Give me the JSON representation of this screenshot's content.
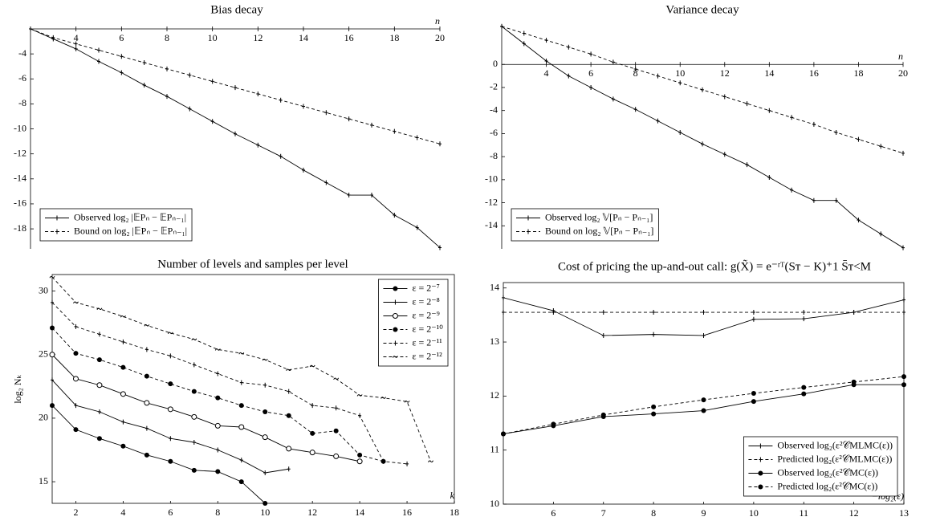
{
  "chart_data": [
    {
      "type": "line",
      "title": "Bias decay",
      "xlabel": "n",
      "x": [
        2,
        3,
        4,
        5,
        6,
        7,
        8,
        9,
        10,
        11,
        12,
        13,
        14,
        15,
        16,
        17,
        18,
        19,
        20
      ],
      "xlim": [
        2,
        20
      ],
      "xticks": [
        4,
        6,
        8,
        10,
        12,
        14,
        16,
        18,
        20
      ],
      "ylim": [
        -19.6,
        -2
      ],
      "yticks": [
        -4,
        -6,
        -8,
        -10,
        -12,
        -14,
        -16,
        -18
      ],
      "box": false,
      "legend": "lower left",
      "series": [
        {
          "name": "Observed log₂ |𝔼Pₙ − 𝔼Pₙ₋₁|",
          "color": "#000",
          "marker": "plus",
          "dash": false,
          "values": [
            -2,
            -2.8,
            -3.6,
            -4.6,
            -5.5,
            -6.5,
            -7.4,
            -8.4,
            -9.4,
            -10.4,
            -11.3,
            -12.2,
            -13.3,
            -14.3,
            -15.3,
            -15.3,
            -16.9,
            -17.9,
            -19.5
          ]
        },
        {
          "name": "Bound on log₂ |𝔼Pₙ − 𝔼Pₙ₋₁|",
          "color": "#000",
          "marker": "plus",
          "dash": true,
          "values": [
            -2,
            -2.7,
            -3.2,
            -3.7,
            -4.2,
            -4.7,
            -5.2,
            -5.7,
            -6.2,
            -6.7,
            -7.2,
            -7.7,
            -8.2,
            -8.7,
            -9.2,
            -9.7,
            -10.2,
            -10.7,
            -11.2
          ]
        }
      ]
    },
    {
      "type": "line",
      "title": "Variance decay",
      "xlabel": "n",
      "x": [
        2,
        3,
        4,
        5,
        6,
        7,
        8,
        9,
        10,
        11,
        12,
        13,
        14,
        15,
        16,
        17,
        18,
        19,
        20
      ],
      "xlim": [
        2,
        20
      ],
      "xticks": [
        4,
        6,
        8,
        10,
        12,
        14,
        16,
        18,
        20
      ],
      "ylim": [
        -16,
        3.5
      ],
      "yticks": [
        0,
        -2,
        -4,
        -6,
        -8,
        -10,
        -12,
        -14
      ],
      "box": false,
      "legend": "lower left",
      "series": [
        {
          "name": "Observed log₂ 𝕍[Pₙ − Pₙ₋₁]",
          "color": "#000",
          "marker": "plus",
          "dash": false,
          "values": [
            3.3,
            1.8,
            0.3,
            -1.0,
            -2.0,
            -3.0,
            -3.9,
            -4.9,
            -5.9,
            -6.9,
            -7.8,
            -8.7,
            -9.8,
            -10.9,
            -11.8,
            -11.8,
            -13.5,
            -14.7,
            -15.9
          ]
        },
        {
          "name": "Bound on log₂ 𝕍[Pₙ − Pₙ₋₁]",
          "color": "#000",
          "marker": "plus",
          "dash": true,
          "values": [
            3.3,
            2.7,
            2.1,
            1.5,
            0.9,
            0.2,
            -0.4,
            -1.0,
            -1.6,
            -2.2,
            -2.8,
            -3.4,
            -4.0,
            -4.6,
            -5.2,
            -5.9,
            -6.5,
            -7.1,
            -7.7
          ]
        }
      ]
    },
    {
      "type": "line",
      "title": "Number of levels and samples per level",
      "xlabel": "k",
      "ylabel": "log₂ Nₖ",
      "xlim": [
        1,
        18
      ],
      "xticks": [
        2,
        4,
        6,
        8,
        10,
        12,
        14,
        16,
        18
      ],
      "ylim": [
        13.3,
        31.3
      ],
      "yticks": [
        15,
        20,
        25,
        30
      ],
      "box": true,
      "legend": "upper right",
      "series": [
        {
          "name": "ε = 2⁻⁷",
          "color": "#000",
          "marker": "dot",
          "dash": false,
          "x": [
            1,
            2,
            3,
            4,
            5,
            6,
            7,
            8,
            9,
            10
          ],
          "values": [
            21,
            19.1,
            18.4,
            17.8,
            17.1,
            16.6,
            15.9,
            15.8,
            15.0,
            13.3
          ]
        },
        {
          "name": "ε = 2⁻⁸",
          "color": "#000",
          "marker": "plus",
          "dash": false,
          "x": [
            1,
            2,
            3,
            4,
            5,
            6,
            7,
            8,
            9,
            10,
            11
          ],
          "values": [
            23,
            21,
            20.5,
            19.7,
            19.2,
            18.4,
            18.1,
            17.5,
            16.7,
            15.7,
            16.0
          ]
        },
        {
          "name": "ε = 2⁻⁹",
          "color": "#000",
          "marker": "circle",
          "dash": false,
          "x": [
            1,
            2,
            3,
            4,
            5,
            6,
            7,
            8,
            9,
            10,
            11,
            12,
            13,
            14
          ],
          "values": [
            25,
            23.1,
            22.6,
            21.9,
            21.2,
            20.7,
            20.1,
            19.4,
            19.3,
            18.5,
            17.6,
            17.3,
            17.0,
            16.6
          ]
        },
        {
          "name": "ε = 2⁻¹⁰",
          "color": "#000",
          "marker": "dot",
          "dash": true,
          "x": [
            1,
            2,
            3,
            4,
            5,
            6,
            7,
            8,
            9,
            10,
            11,
            12,
            13,
            14,
            15
          ],
          "values": [
            27.1,
            25.1,
            24.6,
            24.0,
            23.3,
            22.7,
            22.1,
            21.6,
            21.0,
            20.5,
            20.2,
            18.8,
            19.0,
            17.1,
            16.6
          ]
        },
        {
          "name": "ε = 2⁻¹¹",
          "color": "#000",
          "marker": "plus",
          "dash": true,
          "x": [
            1,
            2,
            3,
            4,
            5,
            6,
            7,
            8,
            9,
            10,
            11,
            12,
            13,
            14,
            15,
            16
          ],
          "values": [
            29.1,
            27.2,
            26.6,
            26.0,
            25.4,
            24.9,
            24.2,
            23.5,
            22.8,
            22.6,
            22.1,
            21.0,
            20.8,
            20.2,
            16.6,
            16.4
          ]
        },
        {
          "name": "ε = 2⁻¹²",
          "color": "#000",
          "marker": "tilde",
          "dash": true,
          "x": [
            1,
            2,
            3,
            4,
            5,
            6,
            7,
            8,
            9,
            10,
            11,
            12,
            13,
            14,
            15,
            16,
            17
          ],
          "values": [
            31.1,
            29.1,
            28.6,
            28.0,
            27.3,
            26.7,
            26.2,
            25.4,
            25.1,
            24.6,
            23.8,
            24.1,
            23.1,
            21.8,
            21.6,
            21.3,
            16.6
          ]
        }
      ]
    },
    {
      "type": "line",
      "title": "Cost of pricing the up-and-out call: g(X̃) = e⁻ʳᵀ(Sᴛ − K)⁺1 S̄ᴛ<M",
      "xlabel": "−log₂(ε)",
      "x": [
        5,
        6,
        7,
        8,
        9,
        10,
        11,
        12,
        13
      ],
      "xlim": [
        5,
        13
      ],
      "xticks": [
        6,
        7,
        8,
        9,
        10,
        11,
        12,
        13
      ],
      "ylim": [
        10,
        14.1
      ],
      "yticks": [
        10,
        11,
        12,
        13,
        14
      ],
      "box": true,
      "legend": "lower right",
      "series": [
        {
          "name": "Observed log₂(ε²𝒞MLMC(ε))",
          "color": "#000",
          "marker": "plus",
          "dash": false,
          "values": [
            13.82,
            13.58,
            13.12,
            13.14,
            13.12,
            13.42,
            13.43,
            13.55,
            13.78
          ]
        },
        {
          "name": "Predicted log₂(ε²𝒞MLMC(ε))",
          "color": "#000",
          "marker": "plus",
          "dash": true,
          "values": [
            13.55,
            13.55,
            13.55,
            13.55,
            13.55,
            13.55,
            13.55,
            13.55,
            13.55
          ]
        },
        {
          "name": "Observed log₂(ε²𝒞MC(ε))",
          "color": "#000",
          "marker": "dot",
          "dash": false,
          "values": [
            11.3,
            11.45,
            11.62,
            11.67,
            11.73,
            11.9,
            12.04,
            12.21,
            12.21
          ]
        },
        {
          "name": "Predicted log₂(ε²𝒞MC(ε))",
          "color": "#000",
          "marker": "dot",
          "dash": true,
          "values": [
            11.3,
            11.48,
            11.65,
            11.8,
            11.93,
            12.05,
            12.16,
            12.26,
            12.36
          ]
        }
      ]
    }
  ]
}
